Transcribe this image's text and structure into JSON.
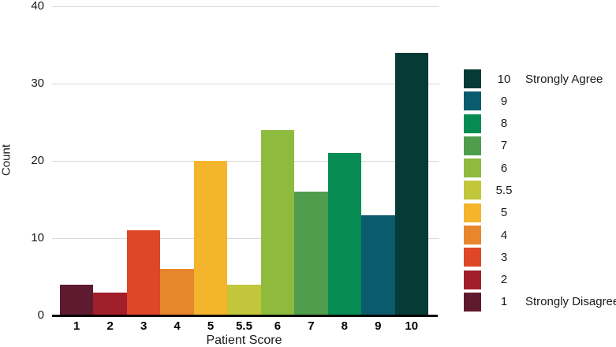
{
  "chart_data": {
    "type": "bar",
    "title": "",
    "xlabel": "Patient Score",
    "ylabel": "Count",
    "categories": [
      "1",
      "2",
      "3",
      "4",
      "5",
      "5.5",
      "6",
      "7",
      "8",
      "9",
      "10"
    ],
    "values": [
      4,
      3,
      11,
      6,
      20,
      4,
      24,
      16,
      21,
      13,
      34
    ],
    "bar_colors": [
      "#5e1a2e",
      "#a11f2a",
      "#de4727",
      "#e8862d",
      "#f4b42c",
      "#c2c63a",
      "#8eba3e",
      "#4f9e4e",
      "#068b52",
      "#0a5b6d",
      "#063a36"
    ],
    "ylim": [
      0,
      40
    ],
    "yticks": [
      "0",
      "10",
      "20",
      "30",
      "40"
    ],
    "grid": true,
    "bars_contiguous": true,
    "legend_position": "right",
    "legend": [
      {
        "value": "10",
        "suffix": "Strongly Agree",
        "color": "#063a36"
      },
      {
        "value": "9",
        "suffix": "",
        "color": "#0a5b6d"
      },
      {
        "value": "8",
        "suffix": "",
        "color": "#068b52"
      },
      {
        "value": "7",
        "suffix": "",
        "color": "#4f9e4e"
      },
      {
        "value": "6",
        "suffix": "",
        "color": "#8eba3e"
      },
      {
        "value": "5.5",
        "suffix": "",
        "color": "#c2c63a"
      },
      {
        "value": "5",
        "suffix": "",
        "color": "#f4b42c"
      },
      {
        "value": "4",
        "suffix": "",
        "color": "#e8862d"
      },
      {
        "value": "3",
        "suffix": "",
        "color": "#de4727"
      },
      {
        "value": "2",
        "suffix": "",
        "color": "#a11f2a"
      },
      {
        "value": "1",
        "suffix": "Strongly Disagree",
        "color": "#5e1a2e"
      }
    ]
  },
  "colors": {
    "gridline": "#d9d9d9",
    "axis_line": "#000000",
    "text": "#1a1a1a",
    "background": "#ffffff"
  }
}
